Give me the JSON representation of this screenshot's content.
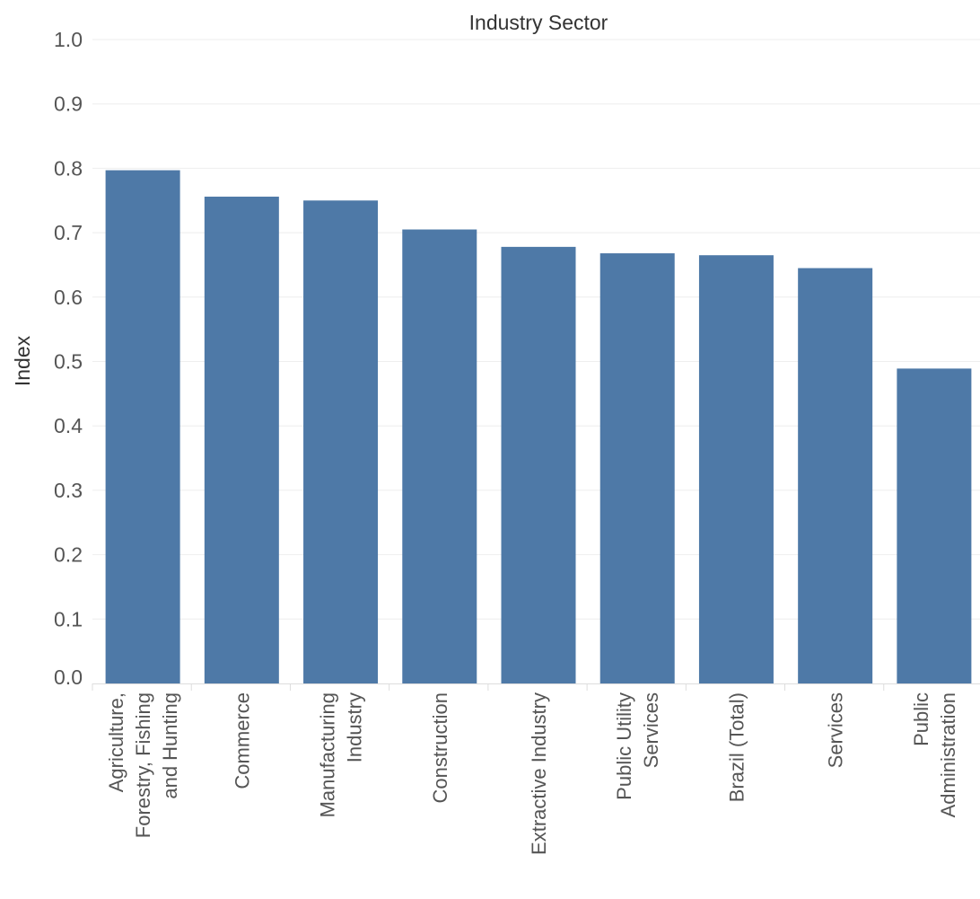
{
  "chart_data": {
    "type": "bar",
    "title": "Industry Sector",
    "xlabel": "",
    "ylabel": "Index",
    "ylim": [
      0,
      1.0
    ],
    "yticks": [
      "0.0",
      "0.1",
      "0.2",
      "0.3",
      "0.4",
      "0.5",
      "0.6",
      "0.7",
      "0.8",
      "0.9",
      "1.0"
    ],
    "grid": true,
    "categories": [
      [
        "Agriculture,",
        "Forestry, Fishing",
        "and Hunting"
      ],
      [
        "Commerce"
      ],
      [
        "Manufacturing",
        "Industry"
      ],
      [
        "Construction"
      ],
      [
        "Extractive Industry"
      ],
      [
        "Public Utility",
        "Services"
      ],
      [
        "Brazil (Total)"
      ],
      [
        "Services"
      ],
      [
        "Public",
        "Administration"
      ]
    ],
    "values": [
      0.797,
      0.756,
      0.75,
      0.705,
      0.678,
      0.668,
      0.665,
      0.645,
      0.489
    ],
    "colors": {
      "bar": "#4e79a7",
      "grid": "#eeeeee",
      "axis": "#dddddd"
    }
  }
}
